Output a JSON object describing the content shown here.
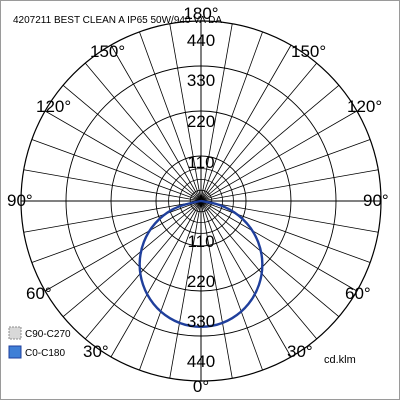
{
  "chart_data": {
    "type": "polar",
    "title": "4207211 BEST CLEAN A IP65 50W/940 VA DA",
    "unit": "cd.klm",
    "r_max": 440,
    "r_labels": [
      "110",
      "220",
      "330",
      "440"
    ],
    "angle_labels": {
      "top": "180°",
      "upper_left": [
        "150°",
        "120°"
      ],
      "upper_right": [
        "150°",
        "120°"
      ],
      "left": "90°",
      "right": "90°",
      "lower_left": [
        "60°",
        "30°"
      ],
      "lower_right": [
        "60°",
        "30°"
      ],
      "bottom": "0°"
    },
    "grid": true,
    "legend": {
      "placement": "bottom-left",
      "items": [
        {
          "name": "C90-C270",
          "color": "#d8d8d8"
        },
        {
          "name": "C0-C180",
          "color": "#3f7fd6"
        }
      ]
    },
    "series": [
      {
        "name": "C0-C180",
        "color": "#1f3f9c",
        "angles_deg": [
          0,
          10,
          20,
          30,
          40,
          50,
          60,
          70,
          80,
          90
        ],
        "values": [
          310,
          305,
          290,
          266,
          234,
          195,
          150,
          100,
          48,
          0
        ]
      }
    ]
  }
}
